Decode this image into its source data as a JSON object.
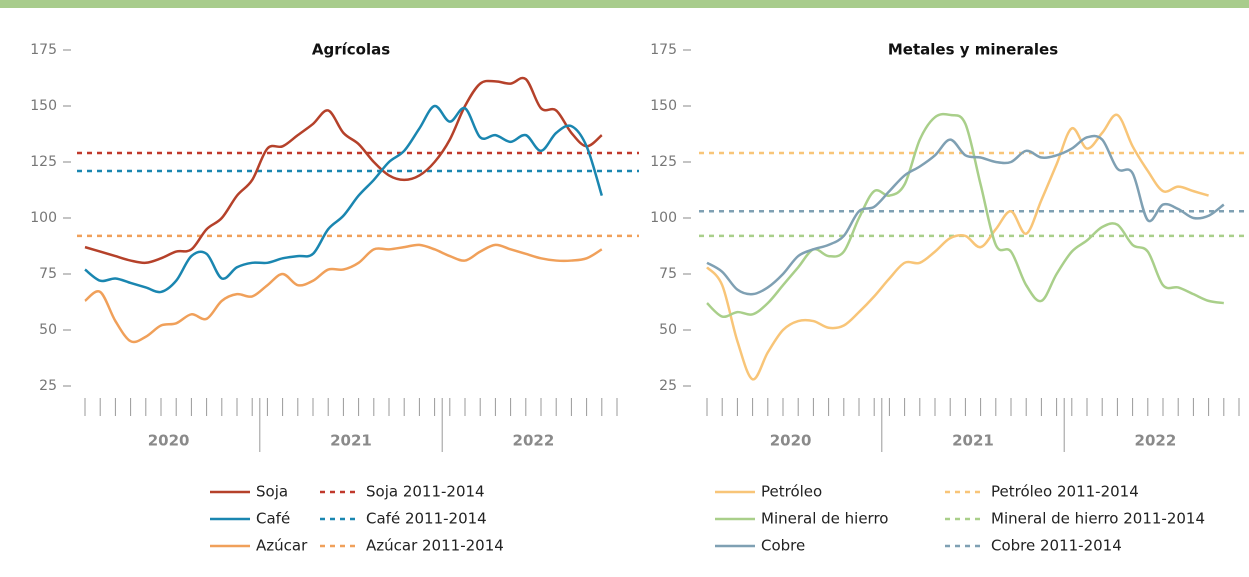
{
  "chart_data": [
    {
      "type": "line",
      "title": "Agrícolas",
      "categories": [
        null,
        null,
        null,
        null,
        null,
        null,
        null,
        null,
        null,
        null,
        null,
        null,
        null,
        null,
        null,
        null,
        null,
        null,
        null,
        null,
        null,
        null,
        null,
        null,
        null,
        null,
        null,
        null,
        null,
        null,
        null,
        null,
        null,
        null,
        null,
        null
      ],
      "year_labels": [
        "2020",
        "2021",
        "2022"
      ],
      "ylim": [
        25,
        175
      ],
      "yticks": [
        25,
        50,
        75,
        100,
        125,
        150,
        175
      ],
      "series": [
        {
          "name": "Soja",
          "color": "#b5412a",
          "values": [
            87,
            85,
            83,
            81,
            80,
            82,
            85,
            86,
            95,
            100,
            110,
            117,
            131,
            132,
            137,
            142,
            148,
            138,
            133,
            125,
            119,
            117,
            119,
            125,
            135,
            150,
            160,
            161,
            160,
            162,
            149,
            148,
            138,
            132,
            137,
            null
          ]
        },
        {
          "name": "Café",
          "color": "#1a86b0",
          "values": [
            77,
            72,
            73,
            71,
            69,
            67,
            72,
            83,
            84,
            73,
            78,
            80,
            80,
            82,
            83,
            84,
            95,
            101,
            110,
            117,
            125,
            130,
            140,
            150,
            143,
            149,
            136,
            137,
            134,
            137,
            130,
            138,
            141,
            132,
            110,
            null
          ]
        },
        {
          "name": "Azúcar",
          "color": "#f0a05a",
          "values": [
            63,
            67,
            54,
            45,
            47,
            52,
            53,
            57,
            55,
            63,
            66,
            65,
            70,
            75,
            70,
            72,
            77,
            77,
            80,
            86,
            86,
            87,
            88,
            86,
            83,
            81,
            85,
            88,
            86,
            84,
            82,
            81,
            81,
            82,
            86,
            null
          ]
        }
      ],
      "reference_lines": [
        {
          "name": "Soja 2011-2014",
          "color": "#c0392b",
          "value": 129
        },
        {
          "name": "Café 2011-2014",
          "color": "#1a86b0",
          "value": 121
        },
        {
          "name": "Azúcar 2011-2014",
          "color": "#f0a05a",
          "value": 92
        }
      ]
    },
    {
      "type": "line",
      "title": "Metales y minerales",
      "categories": [
        null,
        null,
        null,
        null,
        null,
        null,
        null,
        null,
        null,
        null,
        null,
        null,
        null,
        null,
        null,
        null,
        null,
        null,
        null,
        null,
        null,
        null,
        null,
        null,
        null,
        null,
        null,
        null,
        null,
        null,
        null,
        null,
        null,
        null,
        null,
        null
      ],
      "year_labels": [
        "2020",
        "2021",
        "2022"
      ],
      "ylim": [
        25,
        175
      ],
      "yticks": [
        25,
        50,
        75,
        100,
        125,
        150,
        175
      ],
      "series": [
        {
          "name": "Petróleo",
          "color": "#f8c578",
          "values": [
            78,
            70,
            45,
            28,
            40,
            50,
            54,
            54,
            51,
            52,
            58,
            65,
            73,
            80,
            80,
            85,
            91,
            92,
            87,
            95,
            103,
            93,
            108,
            124,
            140,
            131,
            138,
            146,
            132,
            121,
            112,
            114,
            112,
            110,
            null,
            null
          ]
        },
        {
          "name": "Mineral de hierro",
          "color": "#a9cf8a",
          "values": [
            62,
            56,
            58,
            57,
            62,
            70,
            78,
            86,
            83,
            85,
            100,
            112,
            110,
            115,
            135,
            145,
            146,
            142,
            115,
            88,
            85,
            70,
            63,
            75,
            85,
            90,
            96,
            97,
            88,
            85,
            70,
            69,
            66,
            63,
            62,
            null
          ]
        },
        {
          "name": "Cobre",
          "color": "#7fa0b3",
          "values": [
            80,
            76,
            68,
            66,
            69,
            75,
            83,
            86,
            88,
            92,
            103,
            105,
            112,
            119,
            123,
            128,
            135,
            128,
            127,
            125,
            125,
            130,
            127,
            128,
            131,
            136,
            135,
            122,
            120,
            99,
            106,
            104,
            100,
            101,
            106,
            null
          ]
        }
      ],
      "reference_lines": [
        {
          "name": "Petróleo 2011-2014",
          "color": "#f8c578",
          "value": 129
        },
        {
          "name": "Mineral de hierro 2011-2014",
          "color": "#a9cf8a",
          "value": 92
        },
        {
          "name": "Cobre 2011-2014",
          "color": "#7fa0b3",
          "value": 103
        }
      ]
    }
  ]
}
